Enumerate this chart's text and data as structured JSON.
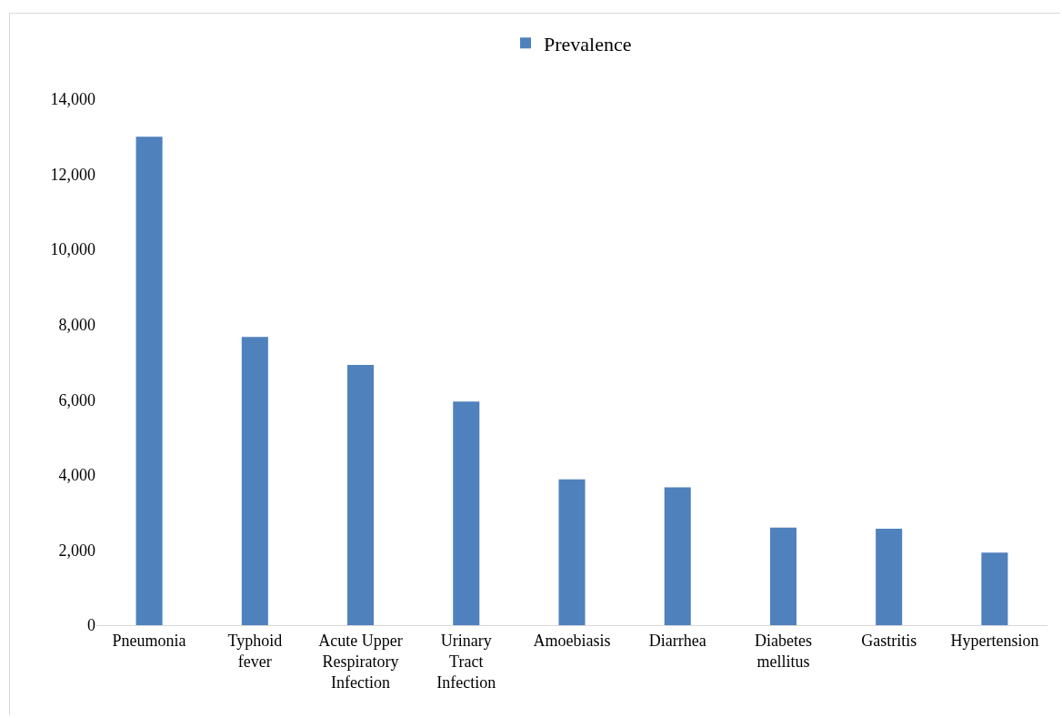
{
  "chart_data": {
    "type": "bar",
    "categories": [
      "Pneumonia",
      "Typhoid fever",
      "Acute Upper Respiratory Infection",
      "Urinary Tract Infection",
      "Amoebiasis",
      "Diarrhea",
      "Diabetes mellitus",
      "Gastritis",
      "Hypertension"
    ],
    "series": [
      {
        "name": "Prevalence",
        "color": "#4f81bd",
        "values": [
          13000,
          7670,
          6930,
          5950,
          3880,
          3670,
          2600,
          2570,
          1930
        ]
      }
    ],
    "ylim": [
      0,
      14000
    ],
    "yticks": [
      {
        "value": 0,
        "label": "0"
      },
      {
        "value": 2000,
        "label": "2,000"
      },
      {
        "value": 4000,
        "label": "4,000"
      },
      {
        "value": 6000,
        "label": "6,000"
      },
      {
        "value": 8000,
        "label": "8,000"
      },
      {
        "value": 10000,
        "label": "10,000"
      },
      {
        "value": 12000,
        "label": "12,000"
      },
      {
        "value": 14000,
        "label": "14,000"
      }
    ],
    "legend": "top"
  }
}
